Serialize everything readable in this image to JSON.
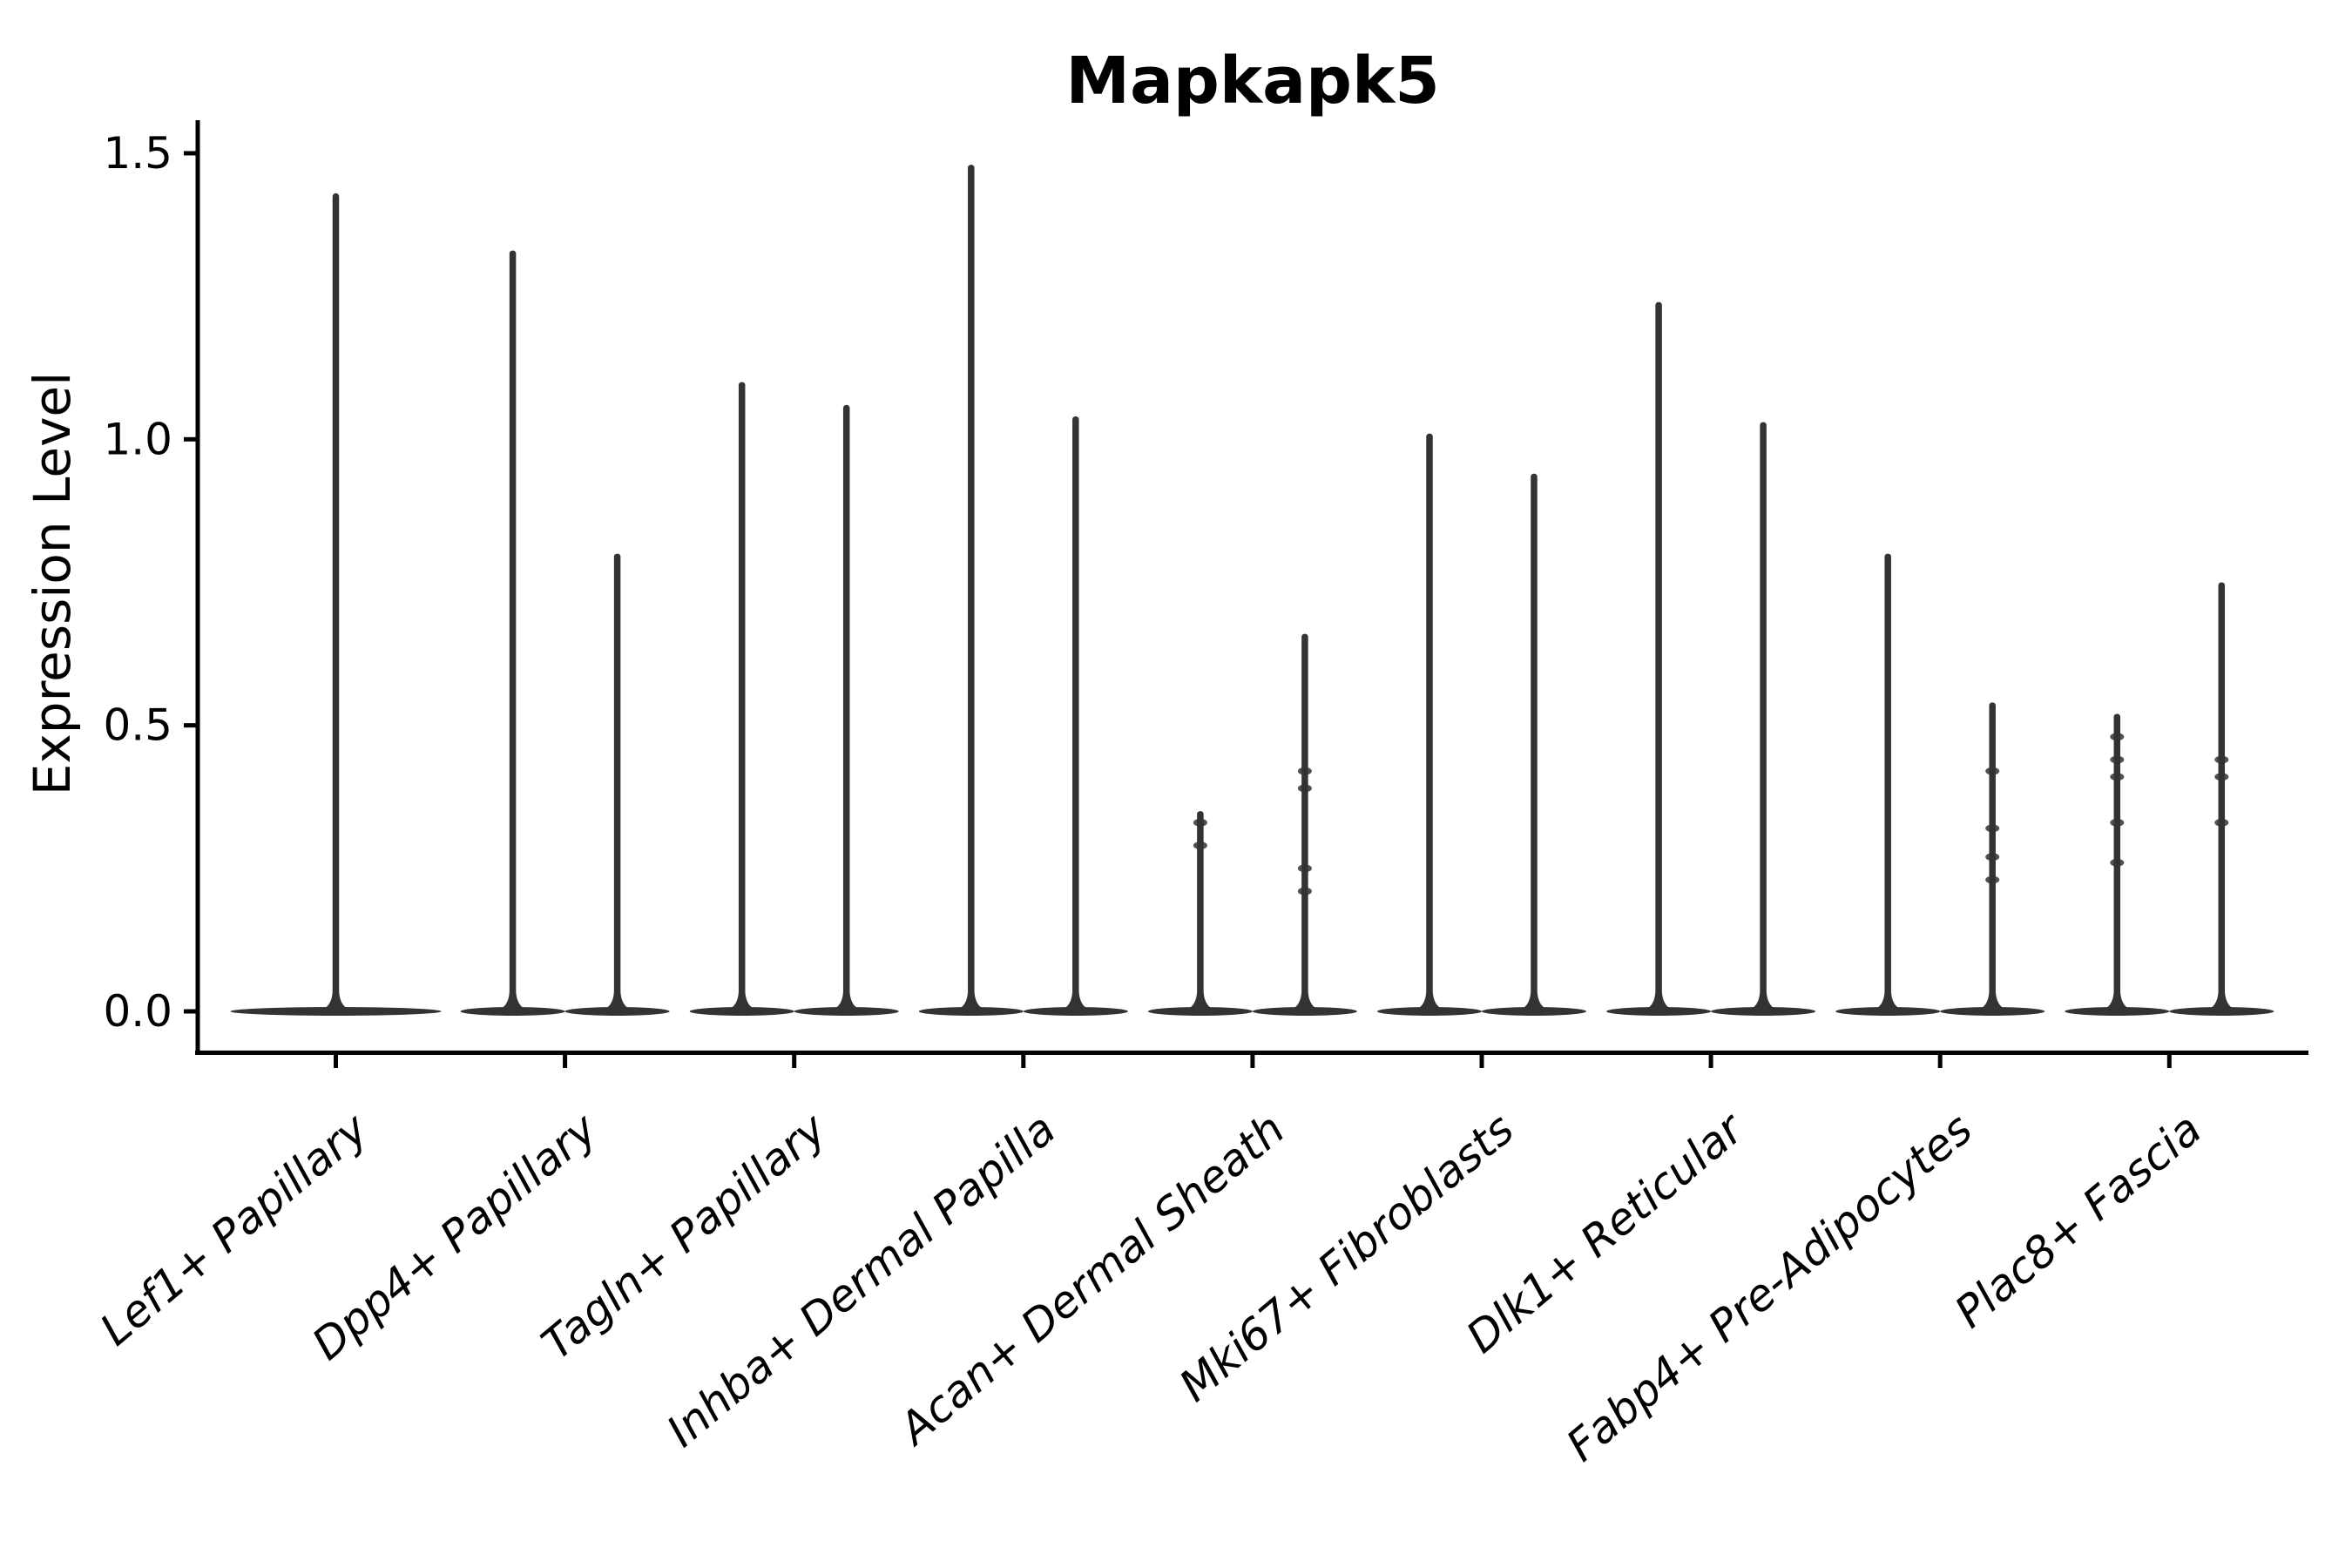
{
  "title": "Mapkapk5",
  "ylabel": "Expression Level",
  "chart_data": {
    "type": "violin",
    "title": "Mapkapk5",
    "xlabel": "",
    "ylabel": "Expression Level",
    "ylim": [
      -0.07,
      1.56
    ],
    "yticks": [
      0.0,
      0.5,
      1.0,
      1.5
    ],
    "ytick_labels": [
      "0.0",
      "0.5",
      "1.0",
      "1.5"
    ],
    "grid": false,
    "legend": "none",
    "violin_color": "#333333",
    "axis_color": "#000000",
    "description": "Violin plot of Mapkapk5 expression; most density at 0 with thin tails up to the max expression per group. Categories 2-9 each contain two side-by-side violins; category 1 has one wide centered violin.",
    "categories": [
      {
        "label": "Lef1+ Papillary",
        "violins": [
          {
            "position": "center",
            "max": 1.43,
            "points": []
          }
        ]
      },
      {
        "label": "Dpp4+ Papillary",
        "violins": [
          {
            "position": "left",
            "max": 1.33,
            "points": []
          },
          {
            "position": "right",
            "max": 0.8,
            "points": []
          }
        ]
      },
      {
        "label": "Tagln+ Papillary",
        "violins": [
          {
            "position": "left",
            "max": 1.1,
            "points": []
          },
          {
            "position": "right",
            "max": 1.06,
            "points": []
          }
        ]
      },
      {
        "label": "Inhba+ Dermal Papilla",
        "violins": [
          {
            "position": "left",
            "max": 1.48,
            "points": []
          },
          {
            "position": "right",
            "max": 1.04,
            "points": []
          }
        ]
      },
      {
        "label": "Acan+ Dermal Sheath",
        "violins": [
          {
            "position": "left",
            "max": 0.35,
            "points": [
              0.33,
              0.29
            ]
          },
          {
            "position": "right",
            "max": 0.66,
            "points": [
              0.42,
              0.39,
              0.25,
              0.21
            ]
          }
        ]
      },
      {
        "label": "Mki67+ Fibroblasts",
        "violins": [
          {
            "position": "left",
            "max": 1.01,
            "points": []
          },
          {
            "position": "right",
            "max": 0.94,
            "points": []
          }
        ]
      },
      {
        "label": "Dlk1+ Reticular",
        "violins": [
          {
            "position": "left",
            "max": 1.24,
            "points": []
          },
          {
            "position": "right",
            "max": 1.03,
            "points": []
          }
        ]
      },
      {
        "label": "Fabp4+ Pre-Adipocytes",
        "violins": [
          {
            "position": "left",
            "max": 0.8,
            "points": []
          },
          {
            "position": "right",
            "max": 0.54,
            "points": [
              0.42,
              0.32,
              0.27,
              0.23
            ]
          }
        ]
      },
      {
        "label": "Plac8+ Fascia",
        "violins": [
          {
            "position": "left",
            "max": 0.52,
            "points": [
              0.48,
              0.44,
              0.41,
              0.33,
              0.26
            ]
          },
          {
            "position": "right",
            "max": 0.75,
            "points": [
              0.44,
              0.41,
              0.33
            ]
          }
        ]
      }
    ]
  }
}
